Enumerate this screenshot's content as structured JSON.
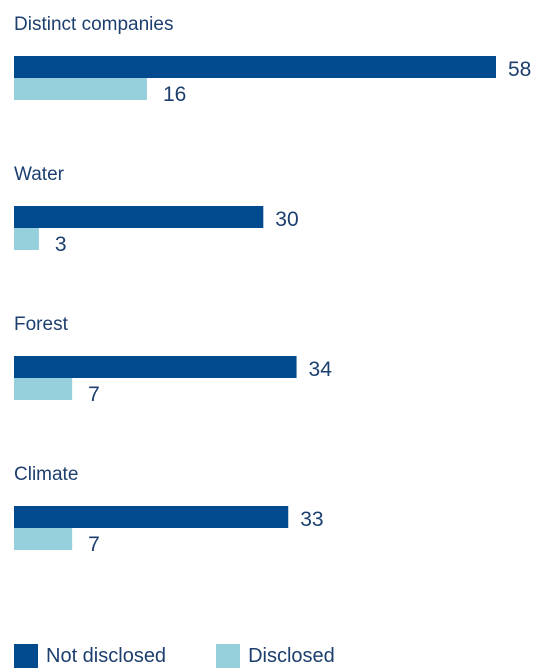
{
  "chart_data": {
    "type": "bar",
    "orientation": "horizontal",
    "categories": [
      "Distinct companies",
      "Water",
      "Forest",
      "Climate"
    ],
    "series": [
      {
        "name": "Not disclosed",
        "color": "#004a8d",
        "values": [
          58,
          30,
          34,
          33
        ]
      },
      {
        "name": "Disclosed",
        "color": "#96d0dc",
        "values": [
          16,
          3,
          7,
          7
        ]
      }
    ],
    "xlim": [
      0,
      58
    ],
    "grid": false,
    "legend_position": "bottom-left"
  }
}
